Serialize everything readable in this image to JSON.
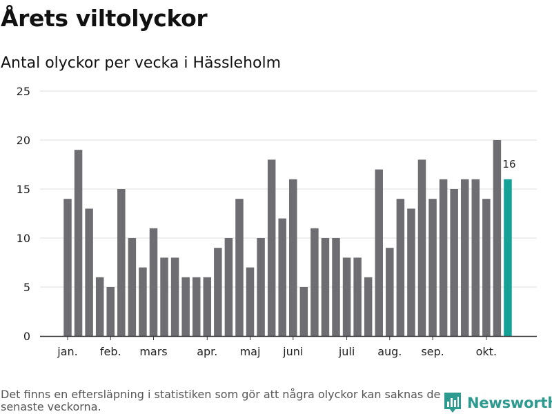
{
  "title": "Årets viltolyckor",
  "subtitle": "Antal olyckor per vecka i Hässleholm",
  "footnote": "Det finns en eftersläpning i statistiken som gör att några olyckor kan saknas de senaste veckorna.",
  "brand": {
    "name": "Newsworthy",
    "icon": "newsworthy-logo-icon",
    "color": "#2c9a8f"
  },
  "chart_data": {
    "type": "bar",
    "title": "Årets viltolyckor",
    "subtitle": "Antal olyckor per vecka i Hässleholm",
    "xlabel": "",
    "ylabel": "",
    "ylim": [
      0,
      25
    ],
    "yticks": [
      0,
      5,
      10,
      15,
      20,
      25
    ],
    "grid": true,
    "legend": "none",
    "bar_color": "#6e6d72",
    "highlight_color": "#16a196",
    "x_ticks": [
      {
        "label": "jan.",
        "week": 1
      },
      {
        "label": "feb.",
        "week": 5
      },
      {
        "label": "mars",
        "week": 9
      },
      {
        "label": "apr.",
        "week": 14
      },
      {
        "label": "maj",
        "week": 18
      },
      {
        "label": "juni",
        "week": 22
      },
      {
        "label": "juli",
        "week": 27
      },
      {
        "label": "aug.",
        "week": 31
      },
      {
        "label": "sep.",
        "week": 35
      },
      {
        "label": "okt.",
        "week": 40
      }
    ],
    "weeks": [
      1,
      2,
      3,
      4,
      5,
      6,
      7,
      8,
      9,
      10,
      11,
      12,
      13,
      14,
      15,
      16,
      17,
      18,
      19,
      20,
      21,
      22,
      23,
      24,
      25,
      26,
      27,
      28,
      29,
      30,
      31,
      32,
      33,
      34,
      35,
      36,
      37,
      38,
      39,
      40,
      41,
      42
    ],
    "values": [
      14,
      19,
      13,
      6,
      5,
      15,
      10,
      7,
      11,
      8,
      8,
      6,
      6,
      6,
      9,
      10,
      14,
      7,
      10,
      18,
      12,
      16,
      5,
      11,
      10,
      10,
      8,
      8,
      6,
      17,
      9,
      14,
      13,
      18,
      14,
      16,
      15,
      16,
      16,
      14,
      20,
      16
    ],
    "highlighted_index": 41,
    "data_labels": [
      {
        "index": 41,
        "text": "16"
      }
    ]
  }
}
